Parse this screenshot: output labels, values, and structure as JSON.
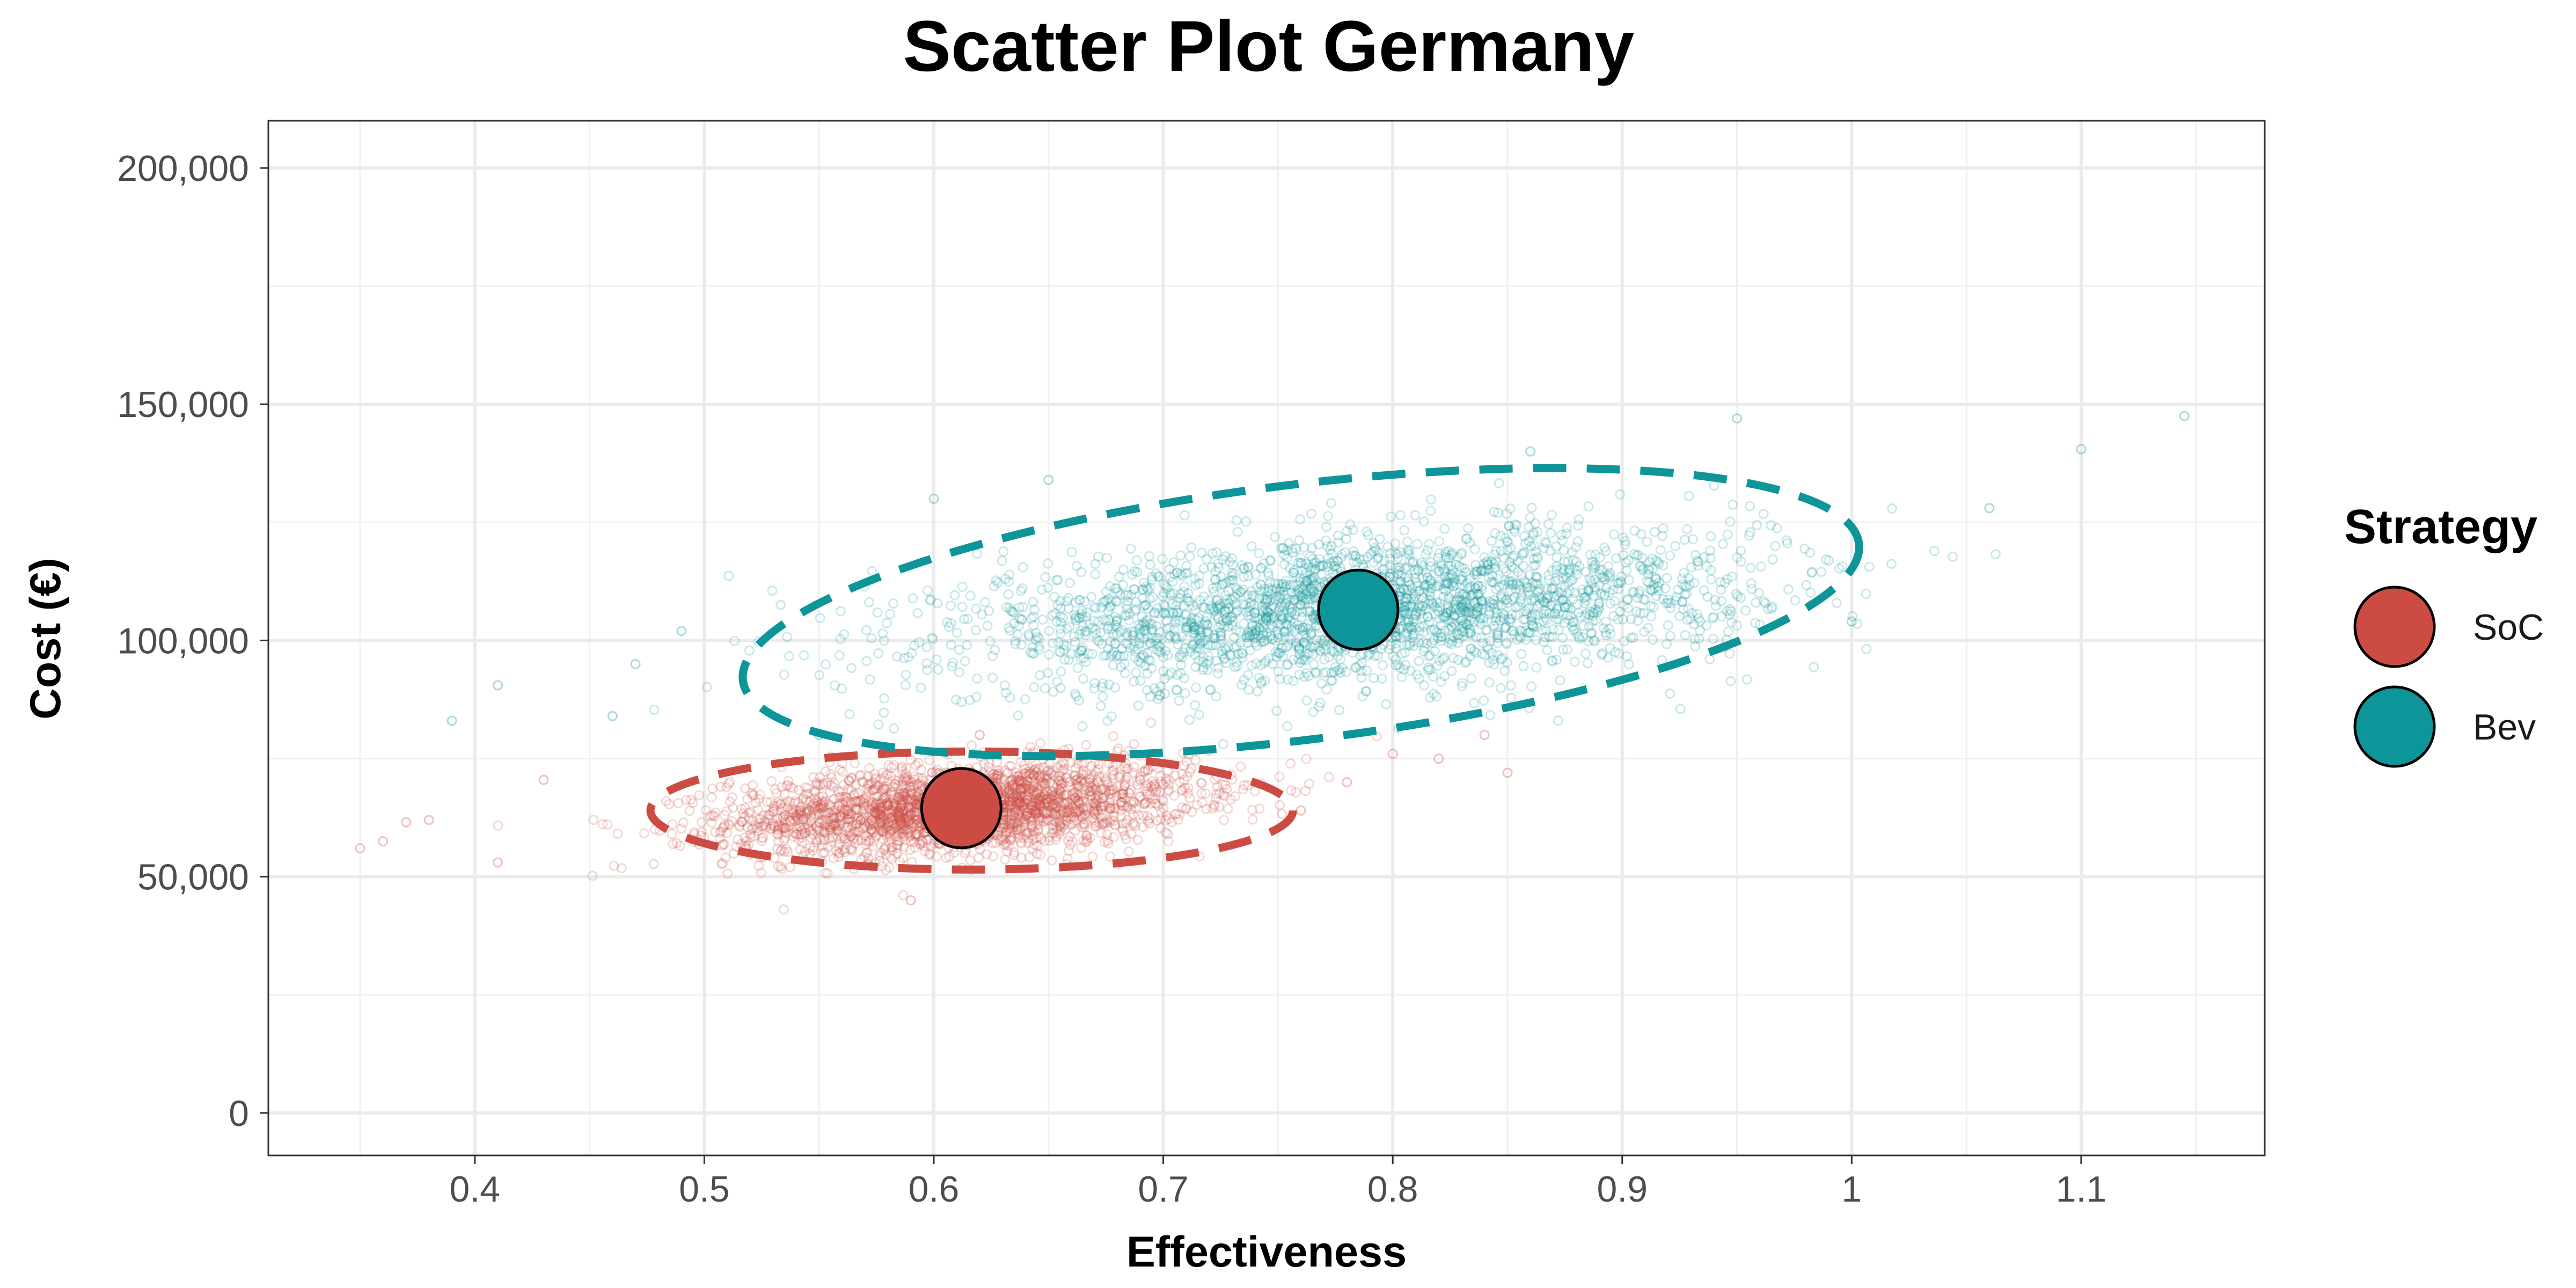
{
  "chart_data": {
    "type": "scatter",
    "title": "Scatter Plot Germany",
    "xlabel": "Effectiveness",
    "ylabel": "Cost (€)",
    "xlim": [
      0.31,
      1.18
    ],
    "ylim": [
      -9000,
      210000
    ],
    "x_ticks": [
      0.4,
      0.5,
      0.6,
      0.7,
      0.8,
      0.9,
      1.0,
      1.1
    ],
    "x_tick_labels": [
      "0.4",
      "0.5",
      "0.6",
      "0.7",
      "0.8",
      "0.9",
      "1",
      "1.1"
    ],
    "y_ticks": [
      0,
      50000,
      100000,
      150000,
      200000
    ],
    "y_tick_labels": [
      "0",
      "50,000",
      "100,000",
      "150,000",
      "200,000"
    ],
    "grid": true,
    "legend": {
      "title": "Strategy",
      "position": "right",
      "entries": [
        "SoC",
        "Bev"
      ]
    },
    "series": [
      {
        "name": "SoC",
        "color": "#CC4C44",
        "mean": {
          "x": 0.612,
          "y": 64500
        },
        "spread": {
          "x_sd": 0.05,
          "y_sd": 4800
        },
        "ellipse": {
          "cx": 0.6165,
          "cy": 64000,
          "x_radius": 0.14,
          "y_radius": 12500
        },
        "extremes": [
          {
            "x": 0.35,
            "y": 56000
          },
          {
            "x": 0.36,
            "y": 57500
          },
          {
            "x": 0.37,
            "y": 61500
          },
          {
            "x": 0.38,
            "y": 62000
          },
          {
            "x": 0.41,
            "y": 53000
          },
          {
            "x": 0.43,
            "y": 70500
          },
          {
            "x": 0.59,
            "y": 45000
          },
          {
            "x": 0.62,
            "y": 80000
          },
          {
            "x": 0.76,
            "y": 64000
          },
          {
            "x": 0.78,
            "y": 70000
          },
          {
            "x": 0.8,
            "y": 76000
          },
          {
            "x": 0.82,
            "y": 75000
          },
          {
            "x": 0.84,
            "y": 80000
          },
          {
            "x": 0.85,
            "y": 72000
          }
        ]
      },
      {
        "name": "Bev",
        "color": "#0E9599",
        "mean": {
          "x": 0.785,
          "y": 106500
        },
        "spread": {
          "x_sd": 0.085,
          "y_sd": 8000
        },
        "ellipse": {
          "cx": 0.76,
          "cy": 106000,
          "x_radius": 0.245,
          "y_radius": 27000,
          "angle_deg": -7
        },
        "extremes": [
          {
            "x": 0.39,
            "y": 83000
          },
          {
            "x": 0.41,
            "y": 90500
          },
          {
            "x": 0.46,
            "y": 84000
          },
          {
            "x": 0.47,
            "y": 95000
          },
          {
            "x": 0.49,
            "y": 102000
          },
          {
            "x": 0.55,
            "y": 80000
          },
          {
            "x": 0.6,
            "y": 130000
          },
          {
            "x": 0.65,
            "y": 134000
          },
          {
            "x": 0.86,
            "y": 140000
          },
          {
            "x": 0.95,
            "y": 147000
          },
          {
            "x": 1.0,
            "y": 104000
          },
          {
            "x": 1.06,
            "y": 128000
          },
          {
            "x": 1.1,
            "y": 140500
          },
          {
            "x": 1.145,
            "y": 147500
          }
        ]
      }
    ]
  }
}
